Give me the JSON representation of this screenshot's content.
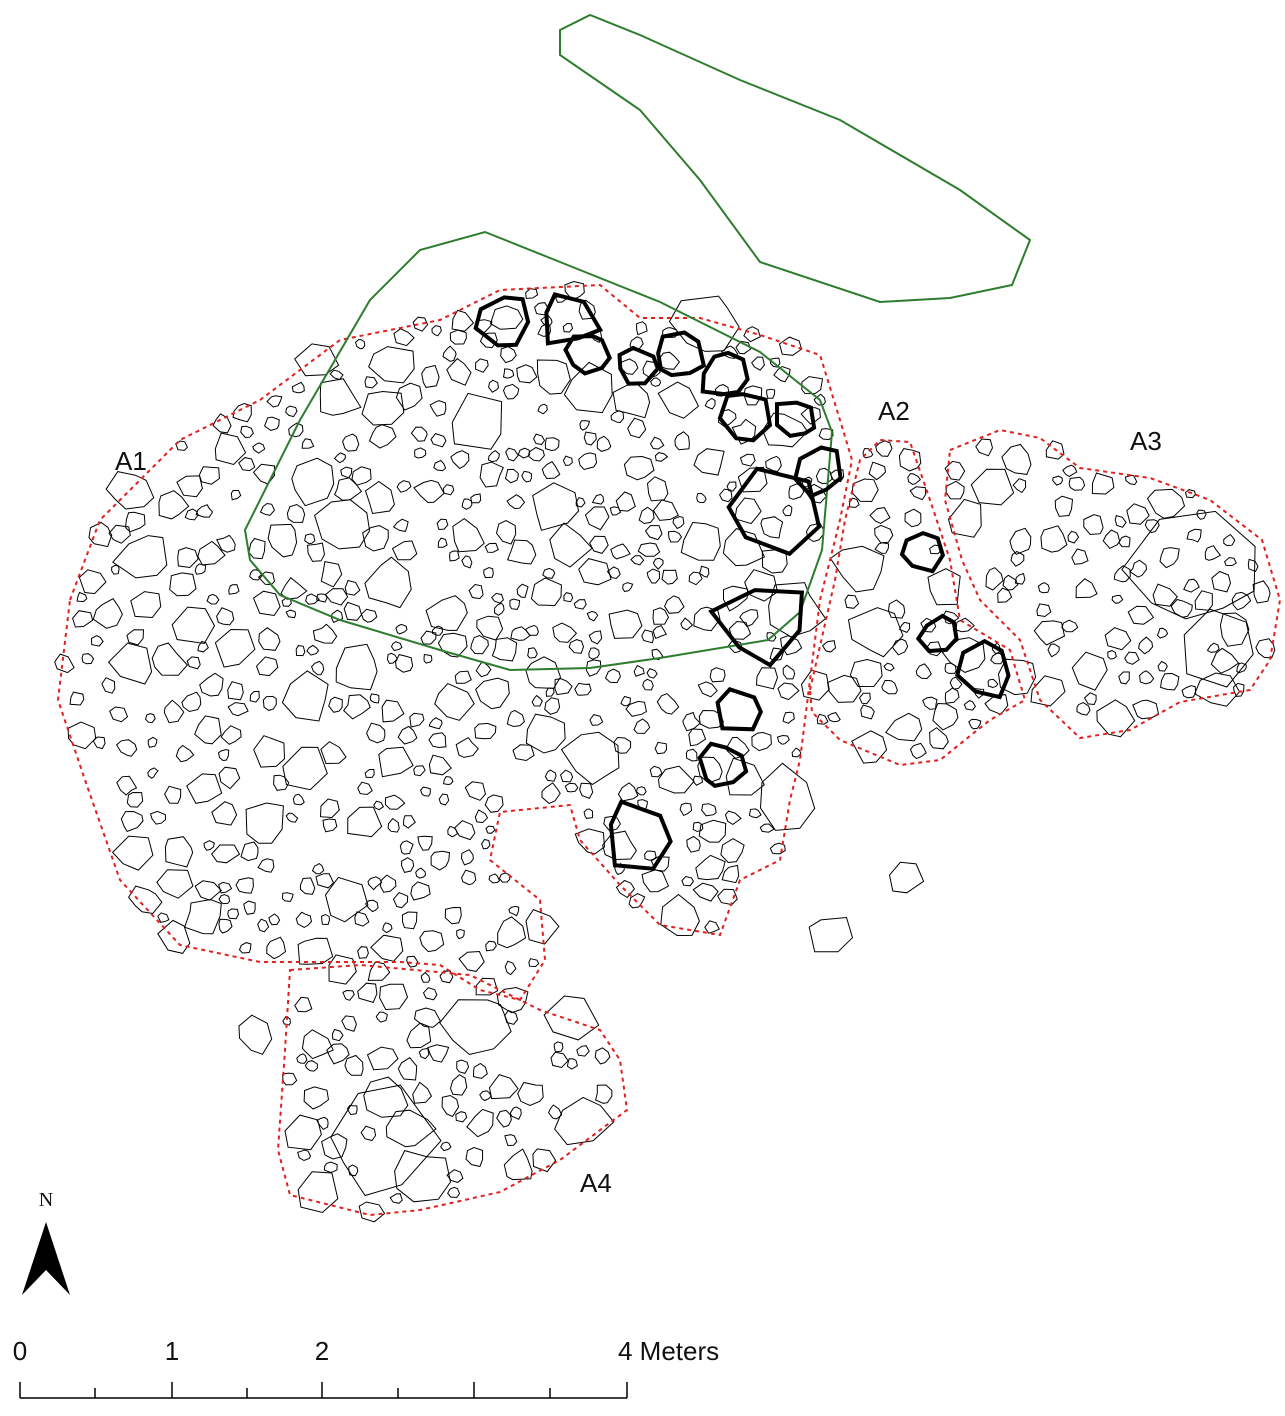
{
  "areas": {
    "a1": "A1",
    "a2": "A2",
    "a3": "A3",
    "a4": "A4"
  },
  "north_arrow": {
    "label": "N"
  },
  "scale_bar": {
    "labels": [
      "0",
      "1",
      "2",
      "4 Meters"
    ]
  }
}
